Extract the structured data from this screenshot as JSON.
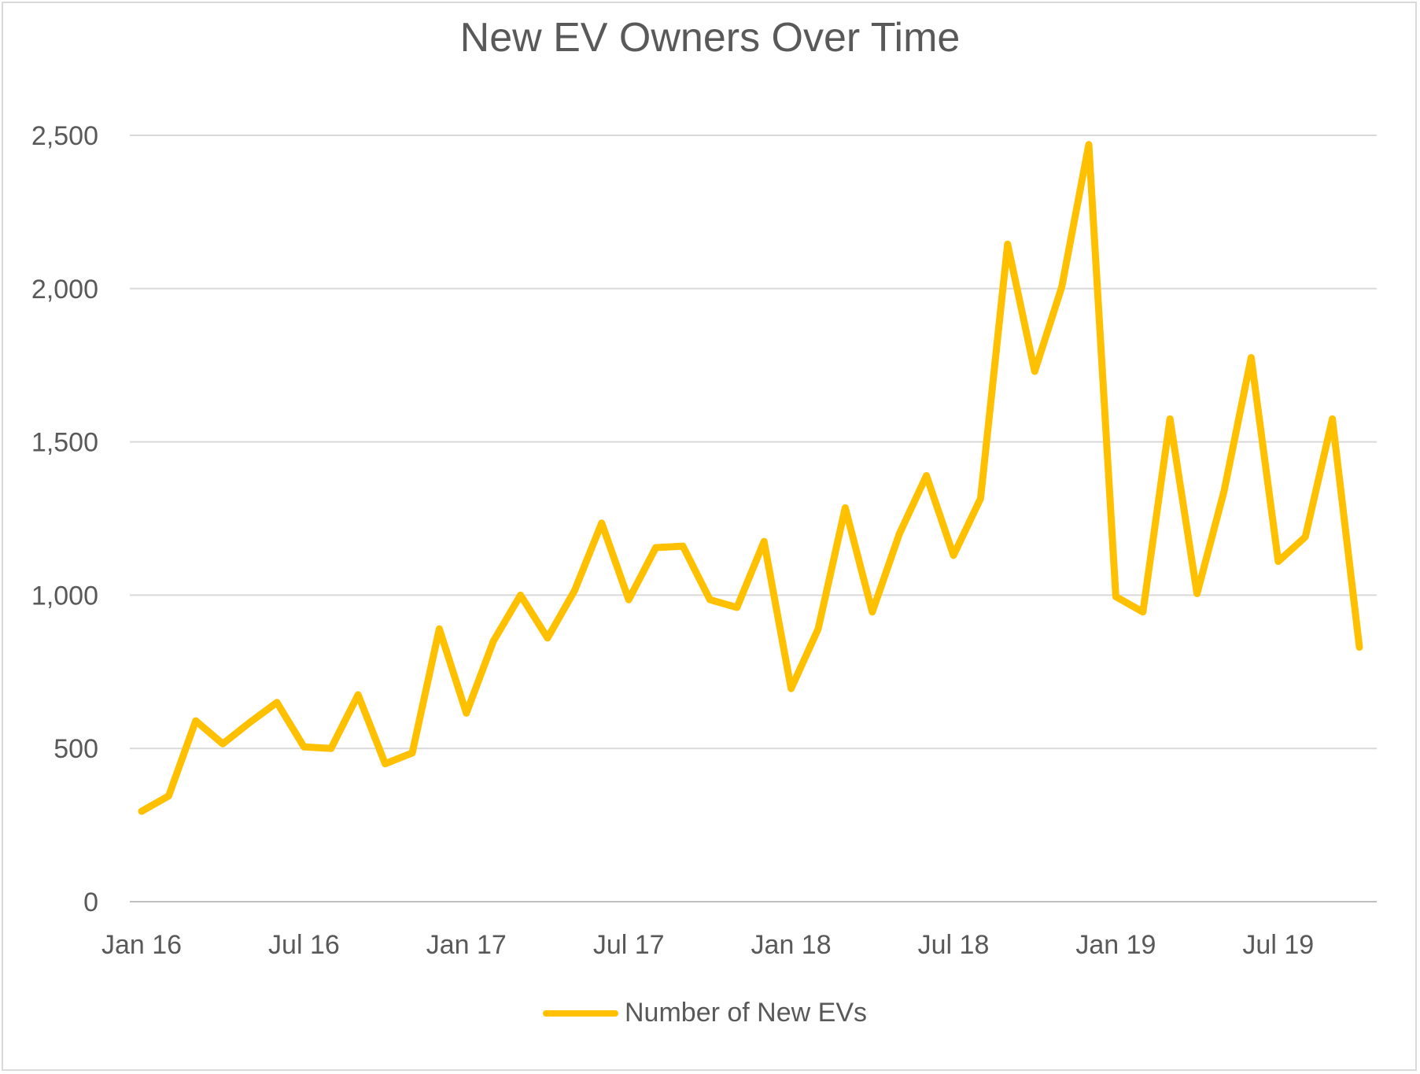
{
  "chart_data": {
    "type": "line",
    "title": "New EV Owners Over Time",
    "xlabel": "",
    "ylabel": "",
    "ylim": [
      0,
      2500
    ],
    "yticks": [
      0,
      500,
      1000,
      1500,
      2000,
      2500
    ],
    "ytick_labels": [
      "0",
      "500",
      "1,000",
      "1,500",
      "2,000",
      "2,500"
    ],
    "xtick_labels": [
      "Jan 16",
      "Jul 16",
      "Jan 17",
      "Jul 17",
      "Jan 18",
      "Jul 18",
      "Jan 19",
      "Jul 19"
    ],
    "grid": true,
    "legend_position": "bottom",
    "color": "#FFC000",
    "x": [
      "Jan 16",
      "Feb 16",
      "Mar 16",
      "Apr 16",
      "May 16",
      "Jun 16",
      "Jul 16",
      "Aug 16",
      "Sep 16",
      "Oct 16",
      "Nov 16",
      "Dec 16",
      "Jan 17",
      "Feb 17",
      "Mar 17",
      "Apr 17",
      "May 17",
      "Jun 17",
      "Jul 17",
      "Aug 17",
      "Sep 17",
      "Oct 17",
      "Nov 17",
      "Dec 17",
      "Jan 18",
      "Feb 18",
      "Mar 18",
      "Apr 18",
      "May 18",
      "Jun 18",
      "Jul 18",
      "Aug 18",
      "Sep 18",
      "Oct 18",
      "Nov 18",
      "Dec 18",
      "Jan 19",
      "Feb 19",
      "Mar 19",
      "Apr 19",
      "May 19",
      "Jun 19",
      "Jul 19",
      "Aug 19",
      "Sep 19",
      "Oct 19"
    ],
    "series": [
      {
        "name": "Number of New EVs",
        "values": [
          295,
          345,
          590,
          515,
          585,
          650,
          505,
          500,
          675,
          450,
          485,
          890,
          615,
          850,
          1000,
          860,
          1015,
          1235,
          985,
          1155,
          1160,
          985,
          960,
          1175,
          695,
          890,
          1285,
          945,
          1200,
          1390,
          1130,
          1315,
          2145,
          1730,
          2005,
          2470,
          995,
          945,
          1575,
          1005,
          1340,
          1775,
          1110,
          1190,
          1575,
          830
        ]
      }
    ]
  }
}
